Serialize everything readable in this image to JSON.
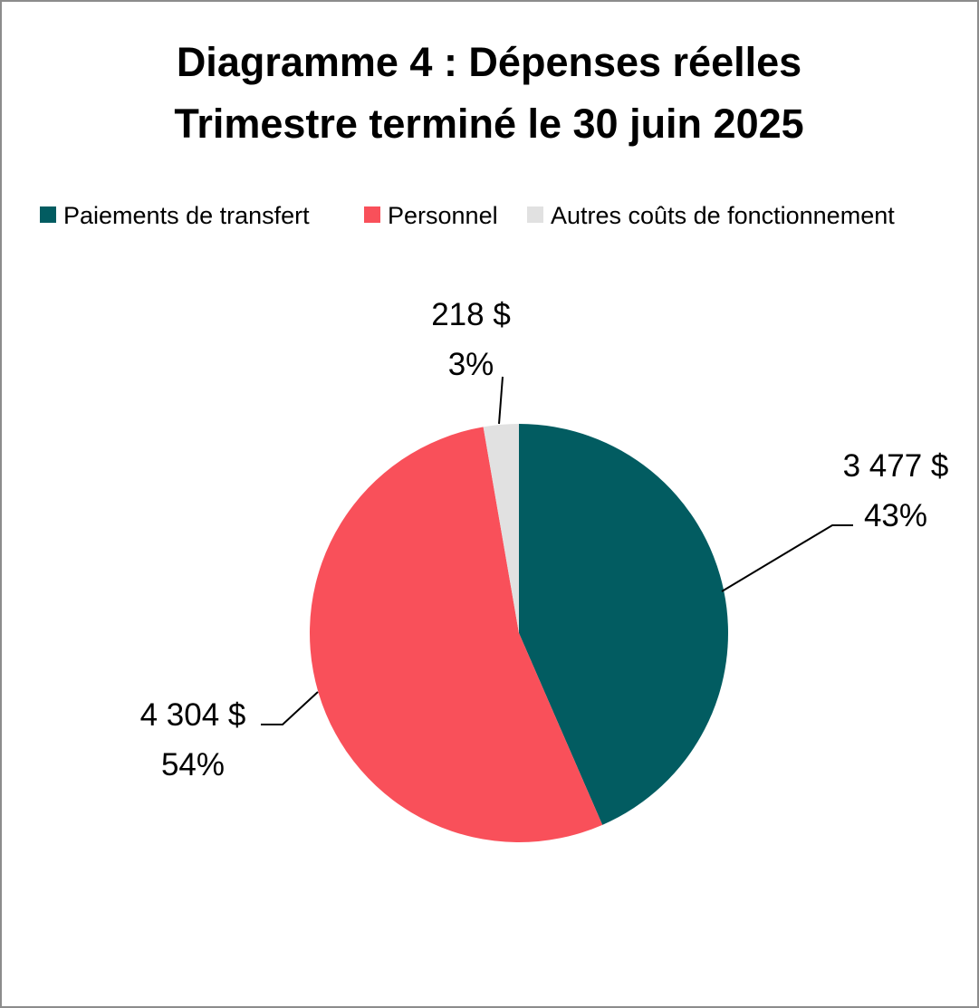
{
  "chart_data": {
    "type": "pie",
    "title": "Diagramme 4 : Dépenses réelles",
    "subtitle": "Trimestre terminé le 30 juin 2025",
    "legend_position": "top",
    "slices": [
      {
        "label": "Paiements de transfert",
        "value": 3477,
        "value_label": "3 477 $",
        "percent": 43,
        "percent_label": "43%",
        "color": "#025C61"
      },
      {
        "label": "Personnel",
        "value": 4304,
        "value_label": "4 304 $",
        "percent": 54,
        "percent_label": "54%",
        "color": "#F9505A"
      },
      {
        "label": "Autres coûts de fonctionnement",
        "value": 218,
        "value_label": "218 $",
        "percent": 3,
        "percent_label": "3%",
        "color": "#E1E1E1"
      }
    ]
  }
}
